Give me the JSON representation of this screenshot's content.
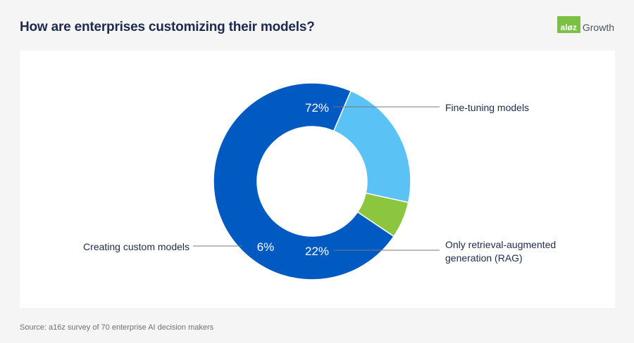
{
  "header": {
    "title": "How are enterprises customizing their models?",
    "logo_badge": "a16z",
    "logo_text": "Growth"
  },
  "footnote": "Source: a16z survey of 70 enterprise AI decision makers",
  "colors": {
    "fine_tuning": "#005ac2",
    "rag": "#5bc2f5",
    "custom": "#8cc63f",
    "leader": "#7a7a7a",
    "label_text": "#1d2a4d",
    "title_text": "#1d2a4d",
    "logo_green": "#7ac143"
  },
  "chart_data": {
    "type": "pie",
    "donut": true,
    "unit": "%",
    "categories": [
      "Fine-tuning models",
      "Only retrieval-augmented generation (RAG)",
      "Creating custom models"
    ],
    "values": [
      72,
      22,
      6
    ],
    "value_labels": [
      "72%",
      "22%",
      "6%"
    ],
    "category_lines": [
      [
        "Fine-tuning models"
      ],
      [
        "Only retrieval-augmented",
        "generation (RAG)"
      ],
      [
        "Creating custom models"
      ]
    ],
    "title": "How are enterprises customizing their models?",
    "legend": "none"
  }
}
